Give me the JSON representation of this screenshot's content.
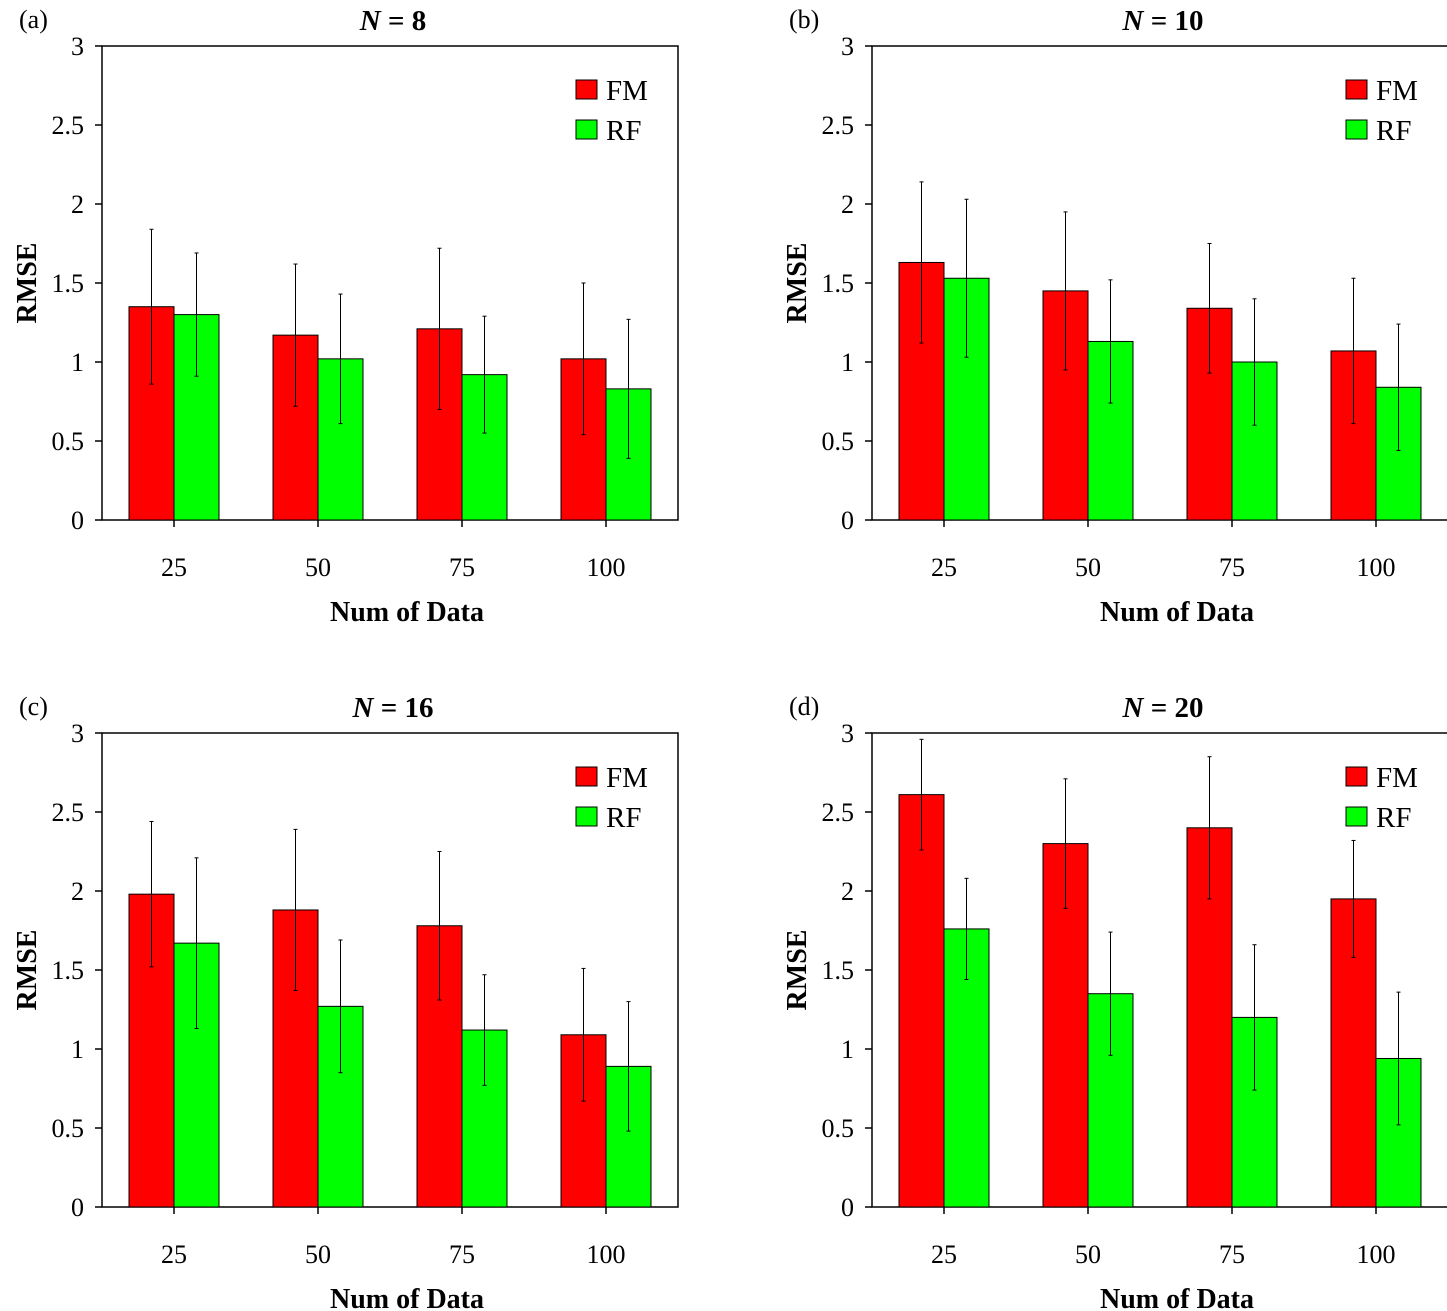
{
  "colors": {
    "FM": "#ff0000",
    "RF": "#00ff00",
    "axis": "#000000"
  },
  "chart_data": [
    {
      "type": "bar",
      "panel_label": "(a)",
      "title_var": "N",
      "title_rest": " = 8",
      "xlabel": "Num of Data",
      "ylabel": "RMSE",
      "ylim": [
        0,
        3
      ],
      "yticks": [
        "0",
        "0.5",
        "1",
        "1.5",
        "2",
        "2.5",
        "3"
      ],
      "categories": [
        "25",
        "50",
        "75",
        "100"
      ],
      "legend_position": "top-right",
      "series": [
        {
          "name": "FM",
          "values": [
            1.35,
            1.17,
            1.21,
            1.02
          ],
          "errors": [
            0.49,
            0.45,
            0.51,
            0.48
          ]
        },
        {
          "name": "RF",
          "values": [
            1.3,
            1.02,
            0.92,
            0.83
          ],
          "errors": [
            0.39,
            0.41,
            0.37,
            0.44
          ]
        }
      ]
    },
    {
      "type": "bar",
      "panel_label": "(b)",
      "title_var": "N",
      "title_rest": " = 10",
      "xlabel": "Num of Data",
      "ylabel": "RMSE",
      "ylim": [
        0,
        3
      ],
      "yticks": [
        "0",
        "0.5",
        "1",
        "1.5",
        "2",
        "2.5",
        "3"
      ],
      "categories": [
        "25",
        "50",
        "75",
        "100"
      ],
      "legend_position": "top-right",
      "series": [
        {
          "name": "FM",
          "values": [
            1.63,
            1.45,
            1.34,
            1.07
          ],
          "errors": [
            0.51,
            0.5,
            0.41,
            0.46
          ]
        },
        {
          "name": "RF",
          "values": [
            1.53,
            1.13,
            1.0,
            0.84
          ],
          "errors": [
            0.5,
            0.39,
            0.4,
            0.4
          ]
        }
      ]
    },
    {
      "type": "bar",
      "panel_label": "(c)",
      "title_var": "N",
      "title_rest": " = 16",
      "xlabel": "Num of Data",
      "ylabel": "RMSE",
      "ylim": [
        0,
        3
      ],
      "yticks": [
        "0",
        "0.5",
        "1",
        "1.5",
        "2",
        "2.5",
        "3"
      ],
      "categories": [
        "25",
        "50",
        "75",
        "100"
      ],
      "legend_position": "top-right",
      "series": [
        {
          "name": "FM",
          "values": [
            1.98,
            1.88,
            1.78,
            1.09
          ],
          "errors": [
            0.46,
            0.51,
            0.47,
            0.42
          ]
        },
        {
          "name": "RF",
          "values": [
            1.67,
            1.27,
            1.12,
            0.89
          ],
          "errors": [
            0.54,
            0.42,
            0.35,
            0.41
          ]
        }
      ]
    },
    {
      "type": "bar",
      "panel_label": "(d)",
      "title_var": "N",
      "title_rest": " = 20",
      "xlabel": "Num of Data",
      "ylabel": "RMSE",
      "ylim": [
        0,
        3
      ],
      "yticks": [
        "0",
        "0.5",
        "1",
        "1.5",
        "2",
        "2.5",
        "3"
      ],
      "categories": [
        "25",
        "50",
        "75",
        "100"
      ],
      "legend_position": "top-right",
      "series": [
        {
          "name": "FM",
          "values": [
            2.61,
            2.3,
            2.4,
            1.95
          ],
          "errors": [
            0.35,
            0.41,
            0.45,
            0.37
          ]
        },
        {
          "name": "RF",
          "values": [
            1.76,
            1.35,
            1.2,
            0.94
          ],
          "errors": [
            0.32,
            0.39,
            0.46,
            0.42
          ]
        }
      ]
    }
  ]
}
